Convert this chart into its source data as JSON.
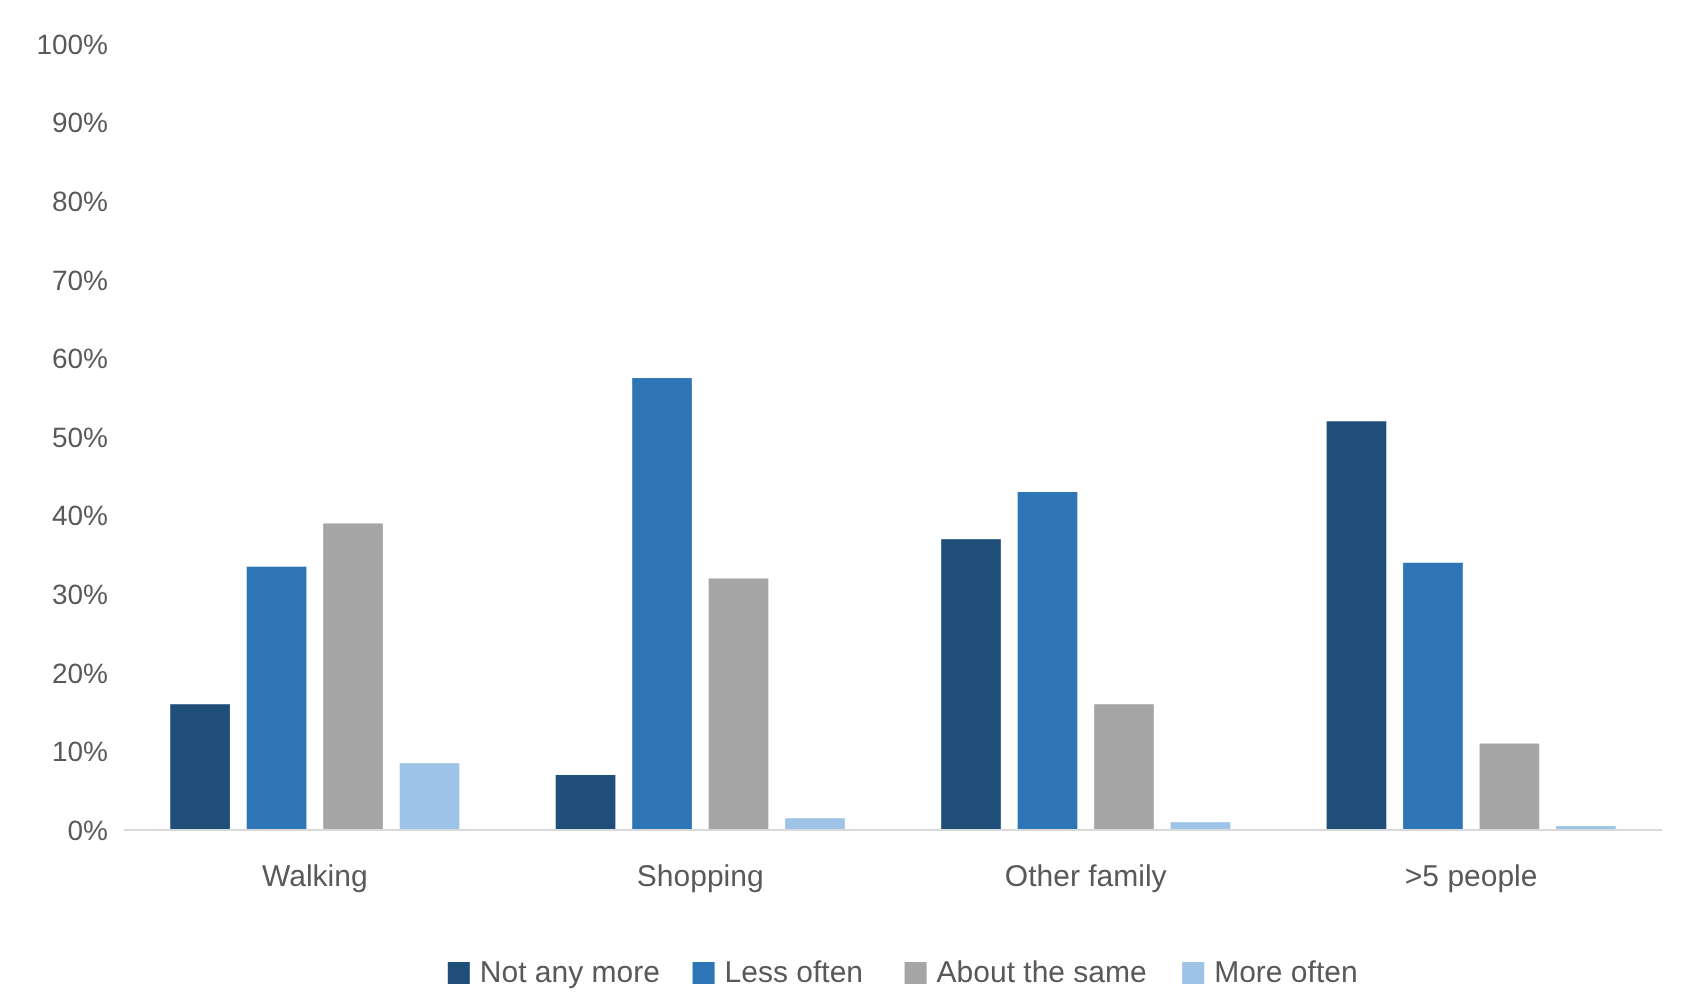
{
  "chart_data": {
    "type": "bar",
    "categories": [
      "Walking",
      "Shopping",
      "Other family",
      ">5 people"
    ],
    "series": [
      {
        "name": "Not any more",
        "color": "#1f4e79",
        "values": [
          16,
          7,
          37,
          52
        ]
      },
      {
        "name": "Less often",
        "color": "#2e75b6",
        "values": [
          33.5,
          57.5,
          43,
          34
        ]
      },
      {
        "name": "About the same",
        "color": "#a5a5a5",
        "values": [
          39,
          32,
          16,
          11
        ]
      },
      {
        "name": "More often",
        "color": "#9dc3e6",
        "values": [
          8.5,
          1.5,
          1,
          0.5
        ]
      }
    ],
    "ylim": [
      0,
      100
    ],
    "yticks": [
      {
        "value": 0,
        "label": "0%"
      },
      {
        "value": 10,
        "label": "10%"
      },
      {
        "value": 20,
        "label": "20%"
      },
      {
        "value": 30,
        "label": "30%"
      },
      {
        "value": 40,
        "label": "40%"
      },
      {
        "value": 50,
        "label": "50%"
      },
      {
        "value": 60,
        "label": "60%"
      },
      {
        "value": 70,
        "label": "70%"
      },
      {
        "value": 80,
        "label": "80%"
      },
      {
        "value": 90,
        "label": "90%"
      },
      {
        "value": 100,
        "label": "100%"
      }
    ],
    "grid": false,
    "legend": "bottom"
  }
}
